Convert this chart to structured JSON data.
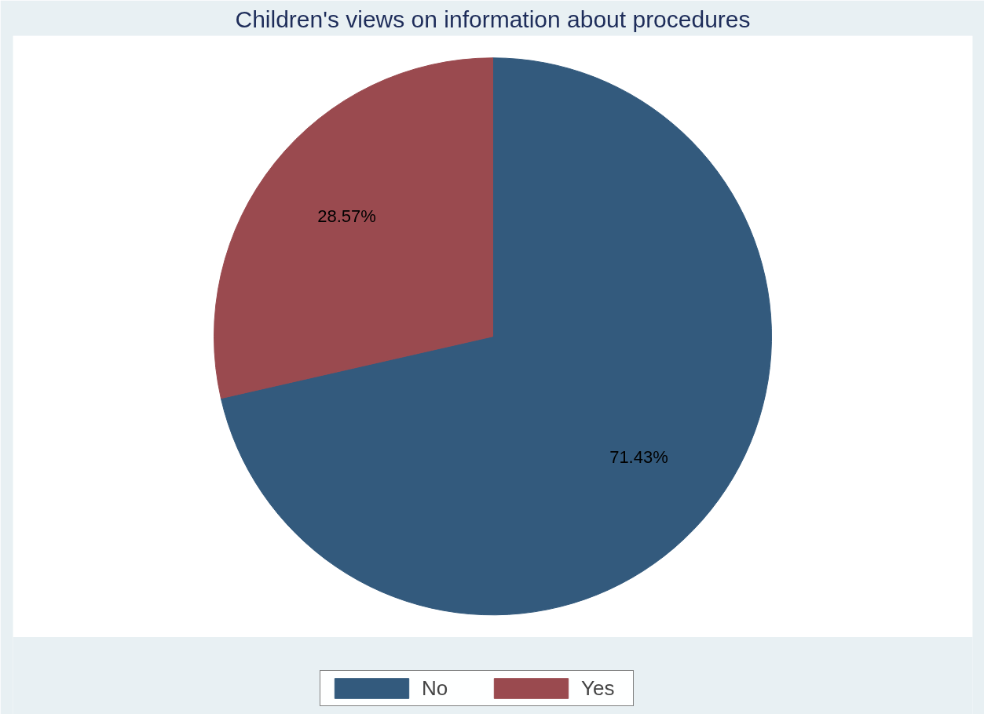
{
  "chart_data": {
    "type": "pie",
    "title": "Children's views on information about procedures",
    "categories": [
      "No",
      "Yes"
    ],
    "values": [
      71.43,
      28.57
    ],
    "colors": [
      "#335a7d",
      "#9a4a4f"
    ],
    "value_labels": [
      "71.43%",
      "28.57%"
    ],
    "legend": "bottom"
  }
}
